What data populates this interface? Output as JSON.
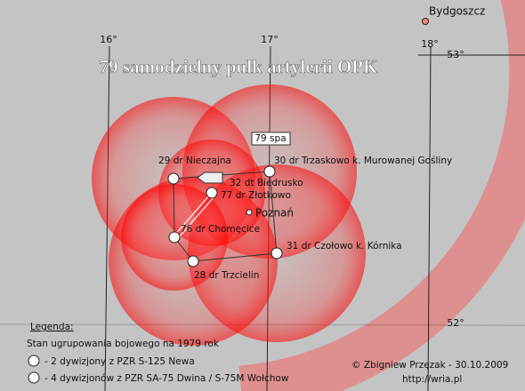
{
  "title": "79 samodzielny pułk artylerii OPK",
  "grid_labels": [
    "16°",
    "17°",
    "18°",
    "53°",
    "52°"
  ],
  "cities": [
    "Bydgoszcz",
    "Poznań"
  ],
  "units": [
    "29 dr Nieczajna",
    "30 dr Trzaskowo k. Murowanej Gośliny",
    "32 dt Biedrusko",
    "77 dr Złotkowo",
    "76 dr Chomęcice",
    "31 dr Czołowo k. Kórnika",
    "28 dr Trzcielin",
    "79 spa"
  ],
  "legend": {
    "title": "Legenda:",
    "subtitle": "Stan ugrupowania bojowego na 1979 rok",
    "items": [
      "- 2 dywizjony z PZR S-125 Newa",
      "- 4 dywizjonów z PZR SA-75 Dwina / S-75M Wołchow"
    ]
  },
  "credit": [
    "© Zbigniew Przęzak - 30.10.2009",
    "http://wria.pl"
  ]
}
